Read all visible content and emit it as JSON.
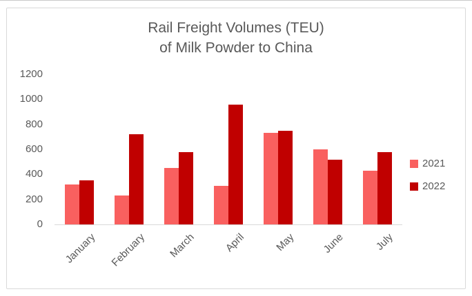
{
  "colors": {
    "text": "#595959",
    "axis_line": "#d9d9d9",
    "frame_border": "#d9d9d9",
    "series_2021": "#f9605f",
    "series_2022": "#c00000"
  },
  "chart_data": {
    "type": "bar",
    "title_lines": [
      "Rail Freight Volumes (TEU)",
      "of Milk Powder to China"
    ],
    "categories": [
      "January",
      "February",
      "March",
      "April",
      "May",
      "June",
      "July"
    ],
    "series": [
      {
        "name": "2021",
        "color": "#f9605f",
        "values": [
          320,
          230,
          450,
          310,
          730,
          600,
          430
        ]
      },
      {
        "name": "2022",
        "color": "#c00000",
        "values": [
          350,
          720,
          580,
          960,
          750,
          520,
          580
        ]
      }
    ],
    "xlabel": "",
    "ylabel": "",
    "ylim": [
      0,
      1200
    ],
    "yticks": [
      0,
      200,
      400,
      600,
      800,
      1000,
      1200
    ],
    "grid": false,
    "legend_position": "right"
  }
}
